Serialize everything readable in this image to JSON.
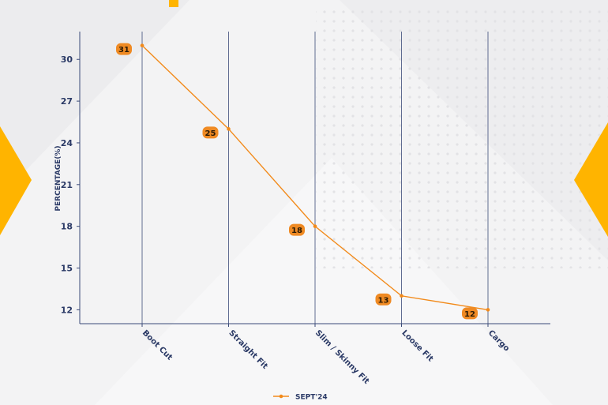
{
  "colors": {
    "line": "#f28a1a",
    "label_bg": "#ef8a23",
    "axis": "#3a4a78",
    "text": "#2b3a66",
    "accent": "#ffb400"
  },
  "chart_data": {
    "type": "line",
    "title": "",
    "xlabel": "",
    "ylabel": "PERCENTAGE(%)",
    "categories": [
      "Boot Cut",
      "Straight Fit",
      "Slim / Skinny Fit",
      "Loose Fit",
      "Cargo"
    ],
    "series": [
      {
        "name": "SEPT'24",
        "values": [
          31,
          25,
          18,
          13,
          12
        ]
      }
    ],
    "yticks": [
      12,
      15,
      18,
      21,
      24,
      27,
      30
    ],
    "ylim": [
      11,
      32
    ],
    "grid": "vertical",
    "legend_position": "bottom-center"
  }
}
